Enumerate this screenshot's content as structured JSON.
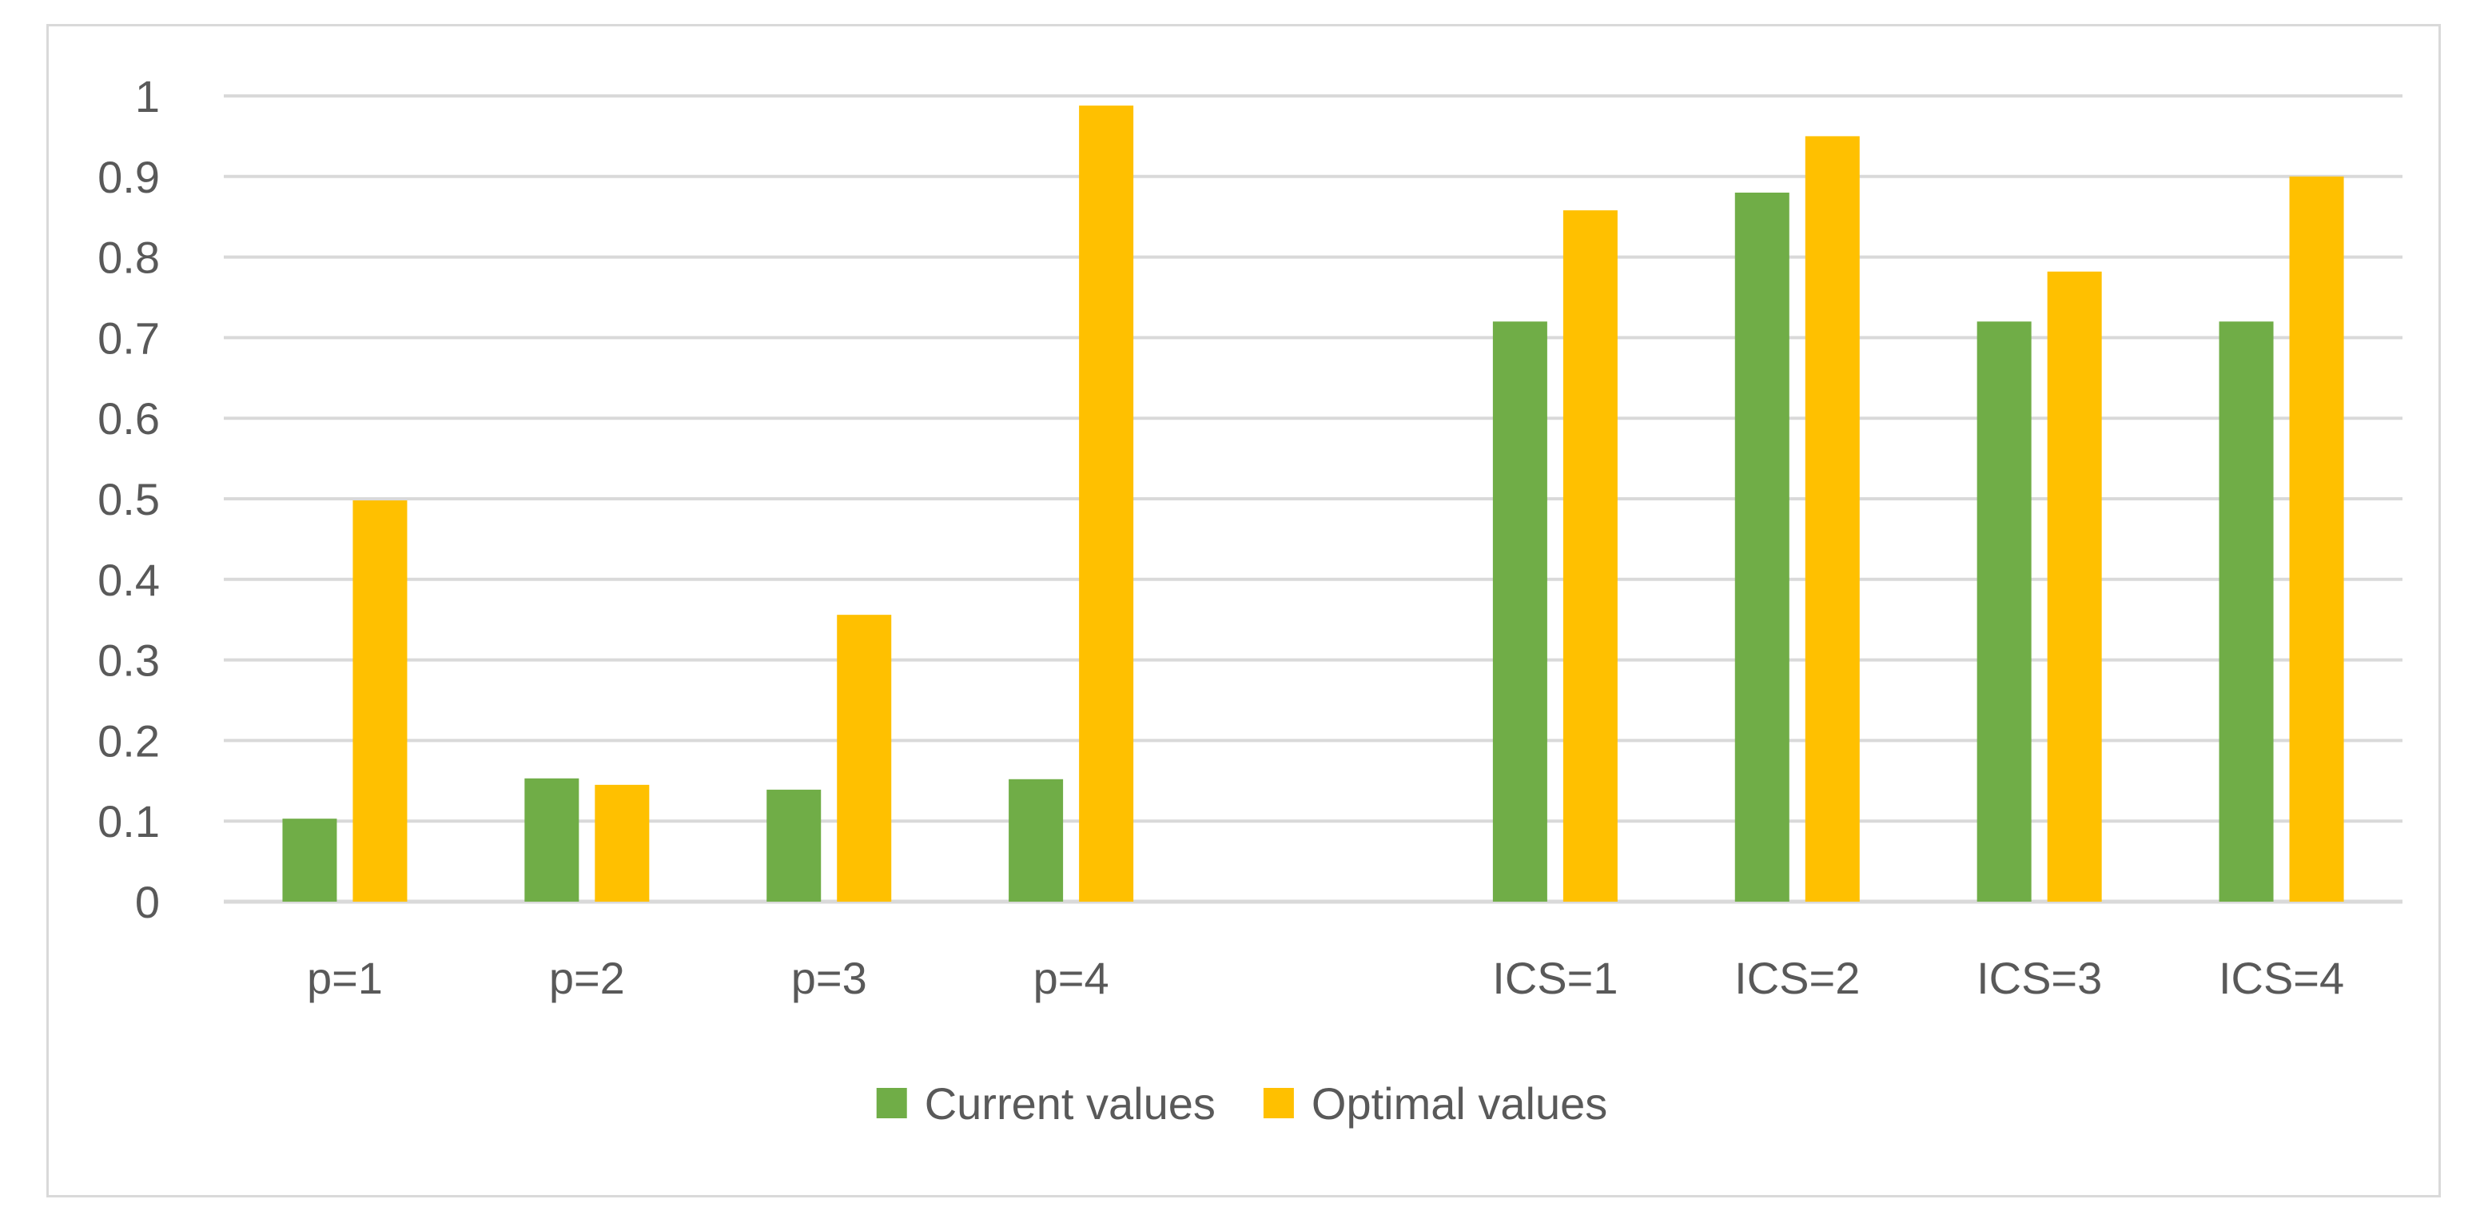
{
  "chart_data": {
    "type": "bar",
    "title": "",
    "xlabel": "",
    "ylabel": "",
    "ylim": [
      0,
      1
    ],
    "yticks": [
      0,
      0.1,
      0.2,
      0.3,
      0.4,
      0.5,
      0.6,
      0.7,
      0.8,
      0.9,
      1
    ],
    "ytick_labels": [
      "0",
      "0.1",
      "0.2",
      "0.3",
      "0.4",
      "0.5",
      "0.6",
      "0.7",
      "0.8",
      "0.9",
      "1"
    ],
    "grid": true,
    "legend_position": "bottom",
    "categories": [
      "p=1",
      "p=2",
      "p=3",
      "p=4",
      "",
      "ICS=1",
      "ICS=2",
      "ICS=3",
      "ICS=4"
    ],
    "series": [
      {
        "name": "Current values",
        "color": "#70ad47",
        "values": [
          0.103,
          0.153,
          0.139,
          0.152,
          null,
          0.72,
          0.88,
          0.72,
          0.72
        ]
      },
      {
        "name": "Optimal values",
        "color": "#ffc000",
        "values": [
          0.498,
          0.145,
          0.356,
          0.988,
          null,
          0.858,
          0.95,
          0.782,
          0.9
        ]
      }
    ]
  }
}
